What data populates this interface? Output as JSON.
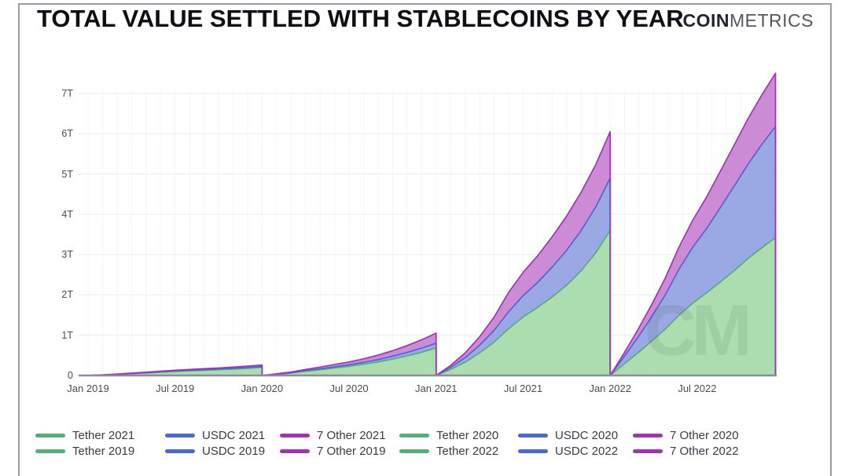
{
  "header": {
    "title": "TOTAL VALUE SETTLED WITH STABLECOINS BY YEAR",
    "brand_bold": "COIN",
    "brand_light": "METRICS"
  },
  "watermark": "CM",
  "chart_data": {
    "type": "area",
    "title": "TOTAL VALUE SETTLED WITH STABLECOINS BY YEAR",
    "unit": "trillions USD settled (T)",
    "ylim": [
      0,
      7.75
    ],
    "grid": true,
    "legend_position": "bottom",
    "y_tick_labels": [
      "0",
      "1T",
      "2T",
      "3T",
      "4T",
      "5T",
      "6T",
      "7T"
    ],
    "y_tick_values": [
      0,
      1,
      2,
      3,
      4,
      5,
      6,
      7
    ],
    "x_tick_labels": [
      "Jan 2019",
      "Jul 2019",
      "Jan 2020",
      "Jul 2020",
      "Jan 2021",
      "Jul 2021",
      "Jan 2022",
      "Jul 2022"
    ],
    "x_tick_months": [
      0,
      6,
      12,
      18,
      24,
      30,
      36,
      42
    ],
    "stack_order": [
      "tether",
      "usdc",
      "other"
    ],
    "series_names": {
      "tether": "Tether",
      "usdc": "USDC",
      "other": "7 Other"
    },
    "colors": {
      "tether_fill": "#a3d9a8",
      "usdc_fill": "#8f9fe0",
      "other_fill": "#c77fd0",
      "tether_line": "#54ae76",
      "usdc_line": "#4a68cf",
      "other_line": "#a134b1",
      "grid": "#ebebf1",
      "grid_vertical": "#f5f5f9",
      "axis": "#8b8b99",
      "tick_text": "#4a4a55",
      "legend_text": "#3a3a46"
    },
    "years": [
      {
        "year": "2019",
        "start_month": 0,
        "months_covered": 12,
        "tether": [
          0.012,
          0.028,
          0.046,
          0.062,
          0.082,
          0.1,
          0.115,
          0.128,
          0.142,
          0.158,
          0.178,
          0.2
        ],
        "usdc": [
          0.001,
          0.003,
          0.005,
          0.007,
          0.009,
          0.011,
          0.013,
          0.015,
          0.017,
          0.019,
          0.021,
          0.023
        ],
        "other": [
          0.002,
          0.005,
          0.008,
          0.011,
          0.015,
          0.018,
          0.021,
          0.024,
          0.027,
          0.03,
          0.033,
          0.036
        ]
      },
      {
        "year": "2020",
        "start_month": 12,
        "months_covered": 12,
        "tether": [
          0.028,
          0.06,
          0.105,
          0.145,
          0.185,
          0.228,
          0.278,
          0.335,
          0.405,
          0.485,
          0.575,
          0.68
        ],
        "usdc": [
          0.004,
          0.009,
          0.015,
          0.021,
          0.028,
          0.036,
          0.046,
          0.058,
          0.072,
          0.087,
          0.103,
          0.12
        ],
        "other": [
          0.008,
          0.017,
          0.03,
          0.043,
          0.057,
          0.072,
          0.09,
          0.112,
          0.138,
          0.17,
          0.207,
          0.25
        ]
      },
      {
        "year": "2021",
        "start_month": 24,
        "months_covered": 12,
        "tether": [
          0.15,
          0.33,
          0.56,
          0.83,
          1.16,
          1.45,
          1.69,
          1.95,
          2.24,
          2.6,
          3.04,
          3.6
        ],
        "usdc": [
          0.05,
          0.11,
          0.19,
          0.29,
          0.42,
          0.53,
          0.62,
          0.74,
          0.87,
          1.0,
          1.14,
          1.3
        ],
        "other": [
          0.05,
          0.12,
          0.21,
          0.33,
          0.48,
          0.58,
          0.66,
          0.75,
          0.85,
          0.95,
          1.05,
          1.15
        ]
      },
      {
        "year": "2022",
        "start_month": 36,
        "months_covered": 11.4,
        "tether": [
          0.28,
          0.56,
          0.85,
          1.15,
          1.5,
          1.8,
          2.05,
          2.32,
          2.6,
          2.9,
          3.17,
          3.42
        ],
        "usdc": [
          0.18,
          0.38,
          0.6,
          0.85,
          1.14,
          1.39,
          1.6,
          1.85,
          2.1,
          2.34,
          2.56,
          2.76
        ],
        "other": [
          0.09,
          0.19,
          0.3,
          0.42,
          0.55,
          0.67,
          0.78,
          0.9,
          1.02,
          1.13,
          1.23,
          1.32
        ]
      }
    ],
    "legend": [
      {
        "label": "Tether 2021",
        "series": "tether"
      },
      {
        "label": "USDC 2021",
        "series": "usdc"
      },
      {
        "label": "7 Other 2021",
        "series": "other"
      },
      {
        "label": "Tether 2020",
        "series": "tether"
      },
      {
        "label": "USDC 2020",
        "series": "usdc"
      },
      {
        "label": "7 Other 2020",
        "series": "other"
      },
      {
        "label": "Tether 2019",
        "series": "tether"
      },
      {
        "label": "USDC 2019",
        "series": "usdc"
      },
      {
        "label": "7 Other 2019",
        "series": "other"
      },
      {
        "label": "Tether 2022",
        "series": "tether"
      },
      {
        "label": "USDC 2022",
        "series": "usdc"
      },
      {
        "label": "7 Other 2022",
        "series": "other"
      }
    ]
  }
}
